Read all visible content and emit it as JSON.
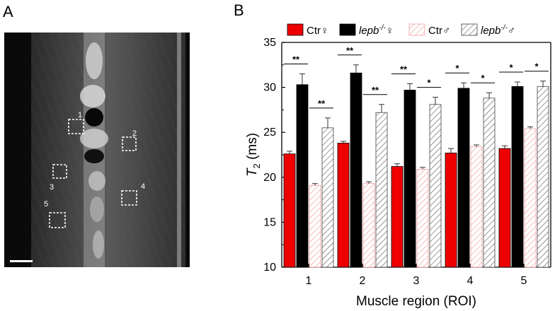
{
  "panels": {
    "a": "A",
    "b": "B"
  },
  "image": {
    "roi_labels": [
      "1",
      "2",
      "3",
      "4",
      "5"
    ]
  },
  "colors": {
    "ctr_female": "#ee0000",
    "lepb_female": "#000000",
    "ctr_male_hatch": "#f0a0a0",
    "lepb_male_hatch": "#555555"
  },
  "chart_data": {
    "type": "bar",
    "xlabel": "Muscle region (ROI)",
    "ylabel_symbol": "T",
    "ylabel_sub": "2",
    "ylabel_unit": " (ms)",
    "ylim": [
      10,
      35
    ],
    "yticks": [
      10,
      15,
      20,
      25,
      30,
      35
    ],
    "categories": [
      "1",
      "2",
      "3",
      "4",
      "5"
    ],
    "legend_position": "top",
    "series": [
      {
        "name": "Ctr♀",
        "name_base": "Ctr",
        "name_sup": "",
        "sex": "♀",
        "italic": false,
        "fill": "solid",
        "color": "#ee0000",
        "values": [
          22.6,
          23.8,
          21.2,
          22.7,
          23.2
        ],
        "errors": [
          0.3,
          0.2,
          0.3,
          0.5,
          0.3
        ]
      },
      {
        "name": "lepb-/-♀",
        "name_base": "lepb",
        "name_sup": "-/-",
        "sex": "♀",
        "italic": true,
        "fill": "solid",
        "color": "#000000",
        "values": [
          30.3,
          31.6,
          29.7,
          29.9,
          30.1
        ],
        "errors": [
          1.2,
          0.9,
          0.7,
          0.6,
          0.5
        ]
      },
      {
        "name": "Ctr♂",
        "name_base": "Ctr",
        "name_sup": "",
        "sex": "♂",
        "italic": false,
        "fill": "hatch",
        "color": "#f0a0a0",
        "values": [
          19.1,
          19.3,
          20.9,
          23.4,
          25.4
        ],
        "errors": [
          0.2,
          0.2,
          0.2,
          0.2,
          0.2
        ]
      },
      {
        "name": "lepb-/-♂",
        "name_base": "lepb",
        "name_sup": "-/-",
        "sex": "♂",
        "italic": true,
        "fill": "hatch",
        "color": "#555555",
        "values": [
          25.5,
          27.2,
          28.1,
          28.8,
          30.1
        ],
        "errors": [
          1.1,
          0.9,
          0.8,
          0.6,
          0.6
        ]
      }
    ],
    "significance": [
      {
        "category": 0,
        "pair": "female",
        "label": "**"
      },
      {
        "category": 0,
        "pair": "male",
        "label": "**"
      },
      {
        "category": 1,
        "pair": "female",
        "label": "**"
      },
      {
        "category": 1,
        "pair": "male",
        "label": "**"
      },
      {
        "category": 2,
        "pair": "female",
        "label": "**"
      },
      {
        "category": 2,
        "pair": "male",
        "label": "*"
      },
      {
        "category": 3,
        "pair": "female",
        "label": "*"
      },
      {
        "category": 3,
        "pair": "male",
        "label": "*"
      },
      {
        "category": 4,
        "pair": "female",
        "label": "*"
      },
      {
        "category": 4,
        "pair": "male",
        "label": "*"
      }
    ]
  }
}
